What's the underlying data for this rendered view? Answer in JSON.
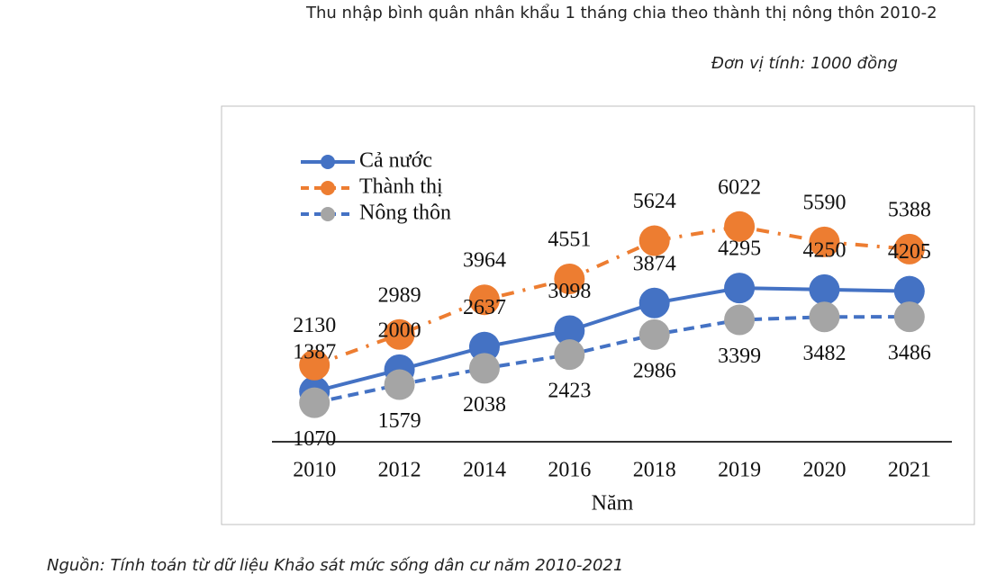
{
  "heading": "Thu nhập bình quân nhân khẩu 1 tháng chia theo thành thị nông thôn 2010-2",
  "unit_note": "Đơn vị tính: 1000 đồng",
  "source_note": "Nguồn: Tính toán từ dữ liệu Khảo sát mức sống dân cư năm 2010-2021",
  "chart_data": {
    "type": "line",
    "x_label": "Năm",
    "categories": [
      "2010",
      "2012",
      "2014",
      "2016",
      "2018",
      "2019",
      "2020",
      "2021"
    ],
    "ylim": [
      0,
      9000
    ],
    "series": [
      {
        "name": "Cả nước",
        "color": "#4472c4",
        "line_color": "#4472c4",
        "dash": "solid",
        "label_side": "above",
        "values": [
          1387,
          2000,
          2637,
          3098,
          3874,
          4295,
          4250,
          4205
        ]
      },
      {
        "name": "Thành thị",
        "color": "#ed7d31",
        "line_color": "#ed7d31",
        "dash": "dashdot",
        "label_side": "above",
        "values": [
          2130,
          2989,
          3964,
          4551,
          5624,
          6022,
          5590,
          5388
        ]
      },
      {
        "name": "Nông thôn",
        "color": "#a5a5a5",
        "line_color": "#4472c4",
        "dash": "dashed",
        "label_side": "below",
        "values": [
          1070,
          1579,
          2038,
          2423,
          2986,
          3399,
          3482,
          3486
        ]
      }
    ],
    "legend": "upper left"
  }
}
